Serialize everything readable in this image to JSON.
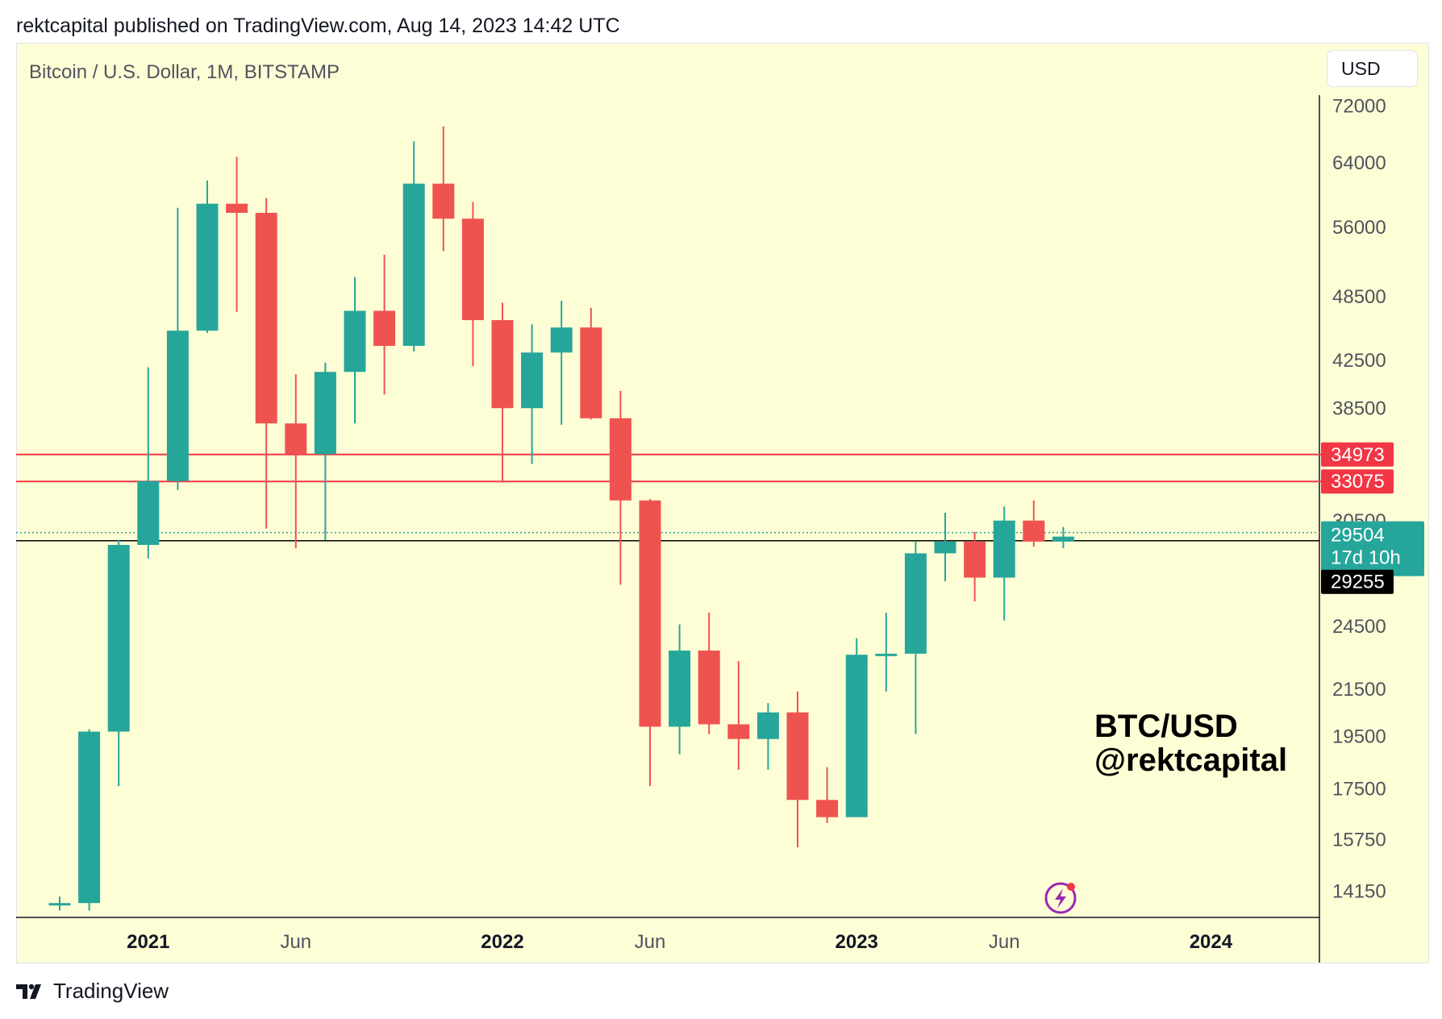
{
  "header": {
    "published_line": "rektcapital published on TradingView.com, Aug 14, 2023 14:42 UTC"
  },
  "chart_header": {
    "symbol_title": "Bitcoin / U.S. Dollar, 1M, BITSTAMP",
    "currency": "USD"
  },
  "watermark": {
    "line1": "BTC/USD",
    "line2": "@rektcapital"
  },
  "footer": {
    "brand": "TradingView"
  },
  "colors": {
    "up": "#26a69a",
    "down": "#ef5350",
    "background": "#fefed6",
    "level_line": "#f23645",
    "current_price_line": "#000000"
  },
  "chart_data": {
    "type": "candlestick",
    "timeframe": "1M",
    "y_scale": "log",
    "ylim": [
      13500,
      73500
    ],
    "y_ticks": [
      72000,
      64000,
      56000,
      48500,
      42500,
      38500,
      30500,
      24500,
      21500,
      19500,
      17500,
      15750,
      14150
    ],
    "x_ticks": [
      {
        "label": "2021",
        "index": 3,
        "bold": true
      },
      {
        "label": "Jun",
        "index": 8,
        "bold": false
      },
      {
        "label": "2022",
        "index": 15,
        "bold": true
      },
      {
        "label": "Jun",
        "index": 20,
        "bold": false
      },
      {
        "label": "2023",
        "index": 27,
        "bold": true
      },
      {
        "label": "Jun",
        "index": 32,
        "bold": false
      },
      {
        "label": "2024",
        "index": 39,
        "bold": true
      }
    ],
    "candles": [
      {
        "month": "2020-10",
        "open": 13800,
        "high": 14000,
        "low": 13600,
        "close": 13810
      },
      {
        "month": "2020-11",
        "open": 13810,
        "high": 19800,
        "low": 13600,
        "close": 19700
      },
      {
        "month": "2020-12",
        "open": 19700,
        "high": 29300,
        "low": 17600,
        "close": 29000
      },
      {
        "month": "2021-01",
        "open": 29000,
        "high": 41900,
        "low": 28200,
        "close": 33100
      },
      {
        "month": "2021-02",
        "open": 33100,
        "high": 58300,
        "low": 32500,
        "close": 45200
      },
      {
        "month": "2021-03",
        "open": 45200,
        "high": 61700,
        "low": 45000,
        "close": 58800
      },
      {
        "month": "2021-04",
        "open": 58800,
        "high": 64800,
        "low": 47000,
        "close": 57700
      },
      {
        "month": "2021-05",
        "open": 57700,
        "high": 59500,
        "low": 30000,
        "close": 37300
      },
      {
        "month": "2021-06",
        "open": 37300,
        "high": 41300,
        "low": 28800,
        "close": 35000
      },
      {
        "month": "2021-07",
        "open": 35000,
        "high": 42300,
        "low": 29300,
        "close": 41500
      },
      {
        "month": "2021-08",
        "open": 41500,
        "high": 50500,
        "low": 37300,
        "close": 47100
      },
      {
        "month": "2021-09",
        "open": 47100,
        "high": 52900,
        "low": 39600,
        "close": 43800
      },
      {
        "month": "2021-10",
        "open": 43800,
        "high": 66900,
        "low": 43300,
        "close": 61300
      },
      {
        "month": "2021-11",
        "open": 61300,
        "high": 69000,
        "low": 53300,
        "close": 57000
      },
      {
        "month": "2021-12",
        "open": 57000,
        "high": 59000,
        "low": 42000,
        "close": 46200
      },
      {
        "month": "2022-01",
        "open": 46200,
        "high": 47900,
        "low": 33000,
        "close": 38500
      },
      {
        "month": "2022-02",
        "open": 38500,
        "high": 45800,
        "low": 34300,
        "close": 43200
      },
      {
        "month": "2022-03",
        "open": 43200,
        "high": 48100,
        "low": 37200,
        "close": 45500
      },
      {
        "month": "2022-04",
        "open": 45500,
        "high": 47400,
        "low": 37600,
        "close": 37700
      },
      {
        "month": "2022-05",
        "open": 37700,
        "high": 39900,
        "low": 26700,
        "close": 31800
      },
      {
        "month": "2022-06",
        "open": 31800,
        "high": 31900,
        "low": 17600,
        "close": 19900
      },
      {
        "month": "2022-07",
        "open": 19900,
        "high": 24600,
        "low": 18800,
        "close": 23300
      },
      {
        "month": "2022-08",
        "open": 23300,
        "high": 25200,
        "low": 19600,
        "close": 20000
      },
      {
        "month": "2022-09",
        "open": 20000,
        "high": 22800,
        "low": 18200,
        "close": 19400
      },
      {
        "month": "2022-10",
        "open": 19400,
        "high": 20900,
        "low": 18200,
        "close": 20500
      },
      {
        "month": "2022-11",
        "open": 20500,
        "high": 21400,
        "low": 15500,
        "close": 17100
      },
      {
        "month": "2022-12",
        "open": 17100,
        "high": 18300,
        "low": 16300,
        "close": 16500
      },
      {
        "month": "2023-01",
        "open": 16500,
        "high": 23900,
        "low": 16500,
        "close": 23100
      },
      {
        "month": "2023-02",
        "open": 23100,
        "high": 25200,
        "low": 21400,
        "close": 23150
      },
      {
        "month": "2023-03",
        "open": 23150,
        "high": 29200,
        "low": 19600,
        "close": 28500
      },
      {
        "month": "2023-04",
        "open": 28500,
        "high": 31000,
        "low": 26900,
        "close": 29200
      },
      {
        "month": "2023-05",
        "open": 29200,
        "high": 29800,
        "low": 25800,
        "close": 27100
      },
      {
        "month": "2023-06",
        "open": 27100,
        "high": 31400,
        "low": 24800,
        "close": 30500
      },
      {
        "month": "2023-07",
        "open": 30500,
        "high": 31800,
        "low": 28900,
        "close": 29200
      },
      {
        "month": "2023-08",
        "open": 29200,
        "high": 30100,
        "low": 28800,
        "close": 29504
      }
    ],
    "horizontal_levels": [
      {
        "price": 34973,
        "label": "34973",
        "color": "#f23645"
      },
      {
        "price": 33075,
        "label": "33075",
        "color": "#f23645"
      }
    ],
    "current_price": {
      "price": 29504,
      "label": "29504",
      "countdown": "17d 10h",
      "color": "#26a69a"
    },
    "crosshair_price": {
      "price": 29255,
      "label": "29255"
    }
  }
}
